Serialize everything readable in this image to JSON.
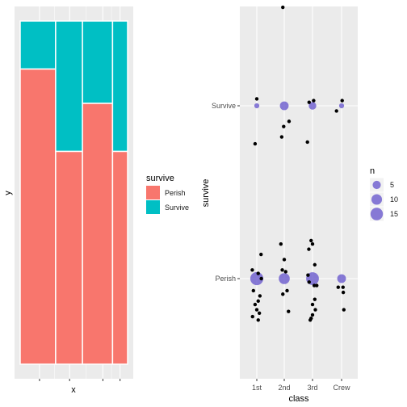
{
  "chart_data": [
    {
      "type": "mosaic",
      "xlabel": "x",
      "ylabel": "y",
      "legend": {
        "title": "survive",
        "placement": "right",
        "entries": [
          {
            "label": "Perish",
            "color": "#F8766D"
          },
          {
            "label": "Survive",
            "color": "#00BFC4"
          }
        ]
      },
      "categories": [
        "1st",
        "2nd",
        "3rd",
        "Crew"
      ],
      "column_widths": [
        0.33,
        0.25,
        0.28,
        0.14
      ],
      "survive_fraction": [
        0.14,
        0.38,
        0.24,
        0.38
      ],
      "x_ticks": [
        0.18,
        0.46,
        0.77,
        0.93
      ],
      "grid": true
    },
    {
      "type": "scatter",
      "xlabel": "class",
      "ylabel": "survive",
      "x_categories": [
        "1st",
        "2nd",
        "3rd",
        "Crew"
      ],
      "y_categories": [
        "Perish",
        "Survive"
      ],
      "grid": true,
      "size_legend": {
        "title": "n",
        "placement": "right",
        "entries": [
          5,
          10,
          15
        ],
        "color": "#6A5ACD"
      },
      "count_points": [
        {
          "x": "1st",
          "y": "Survive",
          "n": 1
        },
        {
          "x": "2nd",
          "y": "Survive",
          "n": 6
        },
        {
          "x": "3rd",
          "y": "Survive",
          "n": 4
        },
        {
          "x": "Crew",
          "y": "Survive",
          "n": 1
        },
        {
          "x": "1st",
          "y": "Perish",
          "n": 17
        },
        {
          "x": "2nd",
          "y": "Perish",
          "n": 11
        },
        {
          "x": "3rd",
          "y": "Perish",
          "n": 16
        },
        {
          "x": "Crew",
          "y": "Perish",
          "n": 6
        }
      ],
      "jitter_points": [
        {
          "x": "1st",
          "y": "Survive",
          "dx": 0.0,
          "dy": 0.04
        },
        {
          "x": "1st",
          "y": "Survive",
          "dx": -0.06,
          "dy": -0.22
        },
        {
          "x": "2nd",
          "y": "Survive",
          "dx": -0.05,
          "dy": 0.57
        },
        {
          "x": "2nd",
          "y": "Survive",
          "dx": 0.17,
          "dy": -0.09
        },
        {
          "x": "2nd",
          "y": "Survive",
          "dx": -0.02,
          "dy": -0.12
        },
        {
          "x": "2nd",
          "y": "Survive",
          "dx": -0.09,
          "dy": -0.18
        },
        {
          "x": "3rd",
          "y": "Survive",
          "dx": 0.04,
          "dy": 0.03
        },
        {
          "x": "3rd",
          "y": "Survive",
          "dx": -0.12,
          "dy": 0.02
        },
        {
          "x": "3rd",
          "y": "Survive",
          "dx": -0.18,
          "dy": -0.21
        },
        {
          "x": "Crew",
          "y": "Survive",
          "dx": 0.02,
          "dy": 0.03
        },
        {
          "x": "Crew",
          "y": "Survive",
          "dx": -0.18,
          "dy": -0.03
        },
        {
          "x": "1st",
          "y": "Perish",
          "dx": 0.15,
          "dy": 0.14
        },
        {
          "x": "1st",
          "y": "Perish",
          "dx": -0.16,
          "dy": 0.05
        },
        {
          "x": "1st",
          "y": "Perish",
          "dx": 0.05,
          "dy": 0.03
        },
        {
          "x": "1st",
          "y": "Perish",
          "dx": 0.16,
          "dy": 0.0
        },
        {
          "x": "1st",
          "y": "Perish",
          "dx": -0.12,
          "dy": -0.07
        },
        {
          "x": "1st",
          "y": "Perish",
          "dx": 0.11,
          "dy": -0.1
        },
        {
          "x": "1st",
          "y": "Perish",
          "dx": 0.05,
          "dy": -0.13
        },
        {
          "x": "1st",
          "y": "Perish",
          "dx": -0.06,
          "dy": -0.15
        },
        {
          "x": "1st",
          "y": "Perish",
          "dx": 0.0,
          "dy": -0.18
        },
        {
          "x": "1st",
          "y": "Perish",
          "dx": 0.09,
          "dy": -0.2
        },
        {
          "x": "1st",
          "y": "Perish",
          "dx": -0.15,
          "dy": -0.22
        },
        {
          "x": "1st",
          "y": "Perish",
          "dx": 0.05,
          "dy": -0.24
        },
        {
          "x": "2nd",
          "y": "Perish",
          "dx": -0.12,
          "dy": 0.2
        },
        {
          "x": "2nd",
          "y": "Perish",
          "dx": 0.0,
          "dy": 0.11
        },
        {
          "x": "2nd",
          "y": "Perish",
          "dx": -0.07,
          "dy": 0.05
        },
        {
          "x": "2nd",
          "y": "Perish",
          "dx": 0.05,
          "dy": 0.04
        },
        {
          "x": "2nd",
          "y": "Perish",
          "dx": 0.1,
          "dy": -0.07
        },
        {
          "x": "2nd",
          "y": "Perish",
          "dx": -0.05,
          "dy": -0.09
        },
        {
          "x": "2nd",
          "y": "Perish",
          "dx": 0.15,
          "dy": -0.19
        },
        {
          "x": "3rd",
          "y": "Perish",
          "dx": -0.05,
          "dy": 0.22
        },
        {
          "x": "3rd",
          "y": "Perish",
          "dx": 0.0,
          "dy": 0.2
        },
        {
          "x": "3rd",
          "y": "Perish",
          "dx": -0.13,
          "dy": 0.17
        },
        {
          "x": "3rd",
          "y": "Perish",
          "dx": 0.08,
          "dy": 0.08
        },
        {
          "x": "3rd",
          "y": "Perish",
          "dx": -0.16,
          "dy": 0.02
        },
        {
          "x": "3rd",
          "y": "Perish",
          "dx": -0.12,
          "dy": -0.02
        },
        {
          "x": "3rd",
          "y": "Perish",
          "dx": 0.15,
          "dy": -0.04
        },
        {
          "x": "3rd",
          "y": "Perish",
          "dx": 0.06,
          "dy": -0.04
        },
        {
          "x": "3rd",
          "y": "Perish",
          "dx": 0.08,
          "dy": -0.12
        },
        {
          "x": "3rd",
          "y": "Perish",
          "dx": 0.0,
          "dy": -0.15
        },
        {
          "x": "3rd",
          "y": "Perish",
          "dx": 0.1,
          "dy": -0.18
        },
        {
          "x": "3rd",
          "y": "Perish",
          "dx": 0.0,
          "dy": -0.21
        },
        {
          "x": "3rd",
          "y": "Perish",
          "dx": -0.05,
          "dy": -0.23
        },
        {
          "x": "3rd",
          "y": "Perish",
          "dx": -0.08,
          "dy": -0.24
        },
        {
          "x": "Crew",
          "y": "Perish",
          "dx": 0.05,
          "dy": -0.05
        },
        {
          "x": "Crew",
          "y": "Perish",
          "dx": -0.12,
          "dy": -0.05
        },
        {
          "x": "Crew",
          "y": "Perish",
          "dx": 0.06,
          "dy": -0.08
        },
        {
          "x": "Crew",
          "y": "Perish",
          "dx": 0.08,
          "dy": -0.18
        }
      ]
    }
  ]
}
